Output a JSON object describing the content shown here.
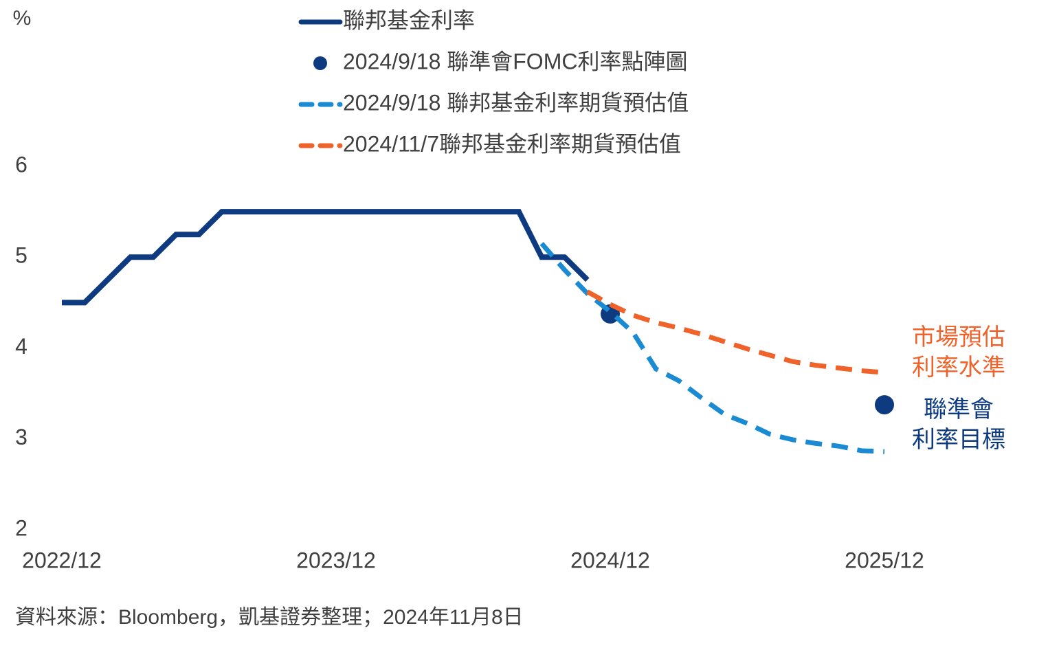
{
  "chart_data": {
    "type": "line",
    "y_label": "%",
    "xlim": [
      "2022/12",
      "2025/12"
    ],
    "xticks": [
      "2022/12",
      "2023/12",
      "2024/12",
      "2025/12"
    ],
    "ylim": [
      2,
      6
    ],
    "yticks": [
      2,
      3,
      4,
      5,
      6
    ],
    "series": [
      {
        "name": "聯邦基金利率",
        "color": "#0e3b80",
        "style": "solid",
        "x": [
          "2022/12",
          "2023/01",
          "2023/02",
          "2023/03",
          "2023/04",
          "2023/05",
          "2023/06",
          "2023/07",
          "2023/08",
          "2023/09",
          "2023/10",
          "2023/11",
          "2023/12",
          "2024/01",
          "2024/02",
          "2024/03",
          "2024/04",
          "2024/05",
          "2024/06",
          "2024/07",
          "2024/08",
          "2024/09",
          "2024/10",
          "2024/11"
        ],
        "values": [
          4.5,
          4.5,
          4.75,
          5.0,
          5.0,
          5.25,
          5.25,
          5.5,
          5.5,
          5.5,
          5.5,
          5.5,
          5.5,
          5.5,
          5.5,
          5.5,
          5.5,
          5.5,
          5.5,
          5.5,
          5.5,
          5.0,
          5.0,
          4.75
        ]
      },
      {
        "name": "2024/9/18 聯準會FOMC利率點陣圖",
        "color": "#0e3b80",
        "style": "dot",
        "x": [
          "2024/12",
          "2025/12"
        ],
        "values": [
          4.375,
          3.375
        ]
      },
      {
        "name": "2024/9/18 聯邦基金利率期貨預估值",
        "color": "#1a8bd3",
        "style": "dashed",
        "x": [
          "2024/09",
          "2024/10",
          "2024/11",
          "2024/12",
          "2025/01",
          "2025/02",
          "2025/03",
          "2025/04",
          "2025/05",
          "2025/06",
          "2025/07",
          "2025/08",
          "2025/09",
          "2025/10",
          "2025/11",
          "2025/12"
        ],
        "values": [
          5.15,
          4.86,
          4.6,
          4.4,
          4.17,
          3.77,
          3.64,
          3.45,
          3.27,
          3.17,
          3.05,
          2.99,
          2.95,
          2.92,
          2.87,
          2.86
        ]
      },
      {
        "name": "2024/11/7聯邦基金利率期貨預估值",
        "color": "#ef6229",
        "style": "dashed",
        "x": [
          "2024/11",
          "2024/12",
          "2025/01",
          "2025/02",
          "2025/03",
          "2025/04",
          "2025/05",
          "2025/06",
          "2025/07",
          "2025/08",
          "2025/09",
          "2025/10",
          "2025/11",
          "2025/12"
        ],
        "values": [
          4.62,
          4.48,
          4.36,
          4.28,
          4.22,
          4.15,
          4.07,
          3.99,
          3.92,
          3.85,
          3.81,
          3.78,
          3.75,
          3.73
        ]
      }
    ],
    "annotations": [
      {
        "lines": [
          "市場預估",
          "利率水準"
        ],
        "color": "#ef6229"
      },
      {
        "lines": [
          "聯準會",
          "利率目標"
        ],
        "color": "#0e3b80"
      }
    ],
    "source": "資料來源：Bloomberg，凱基證券整理；2024年11月8日"
  }
}
